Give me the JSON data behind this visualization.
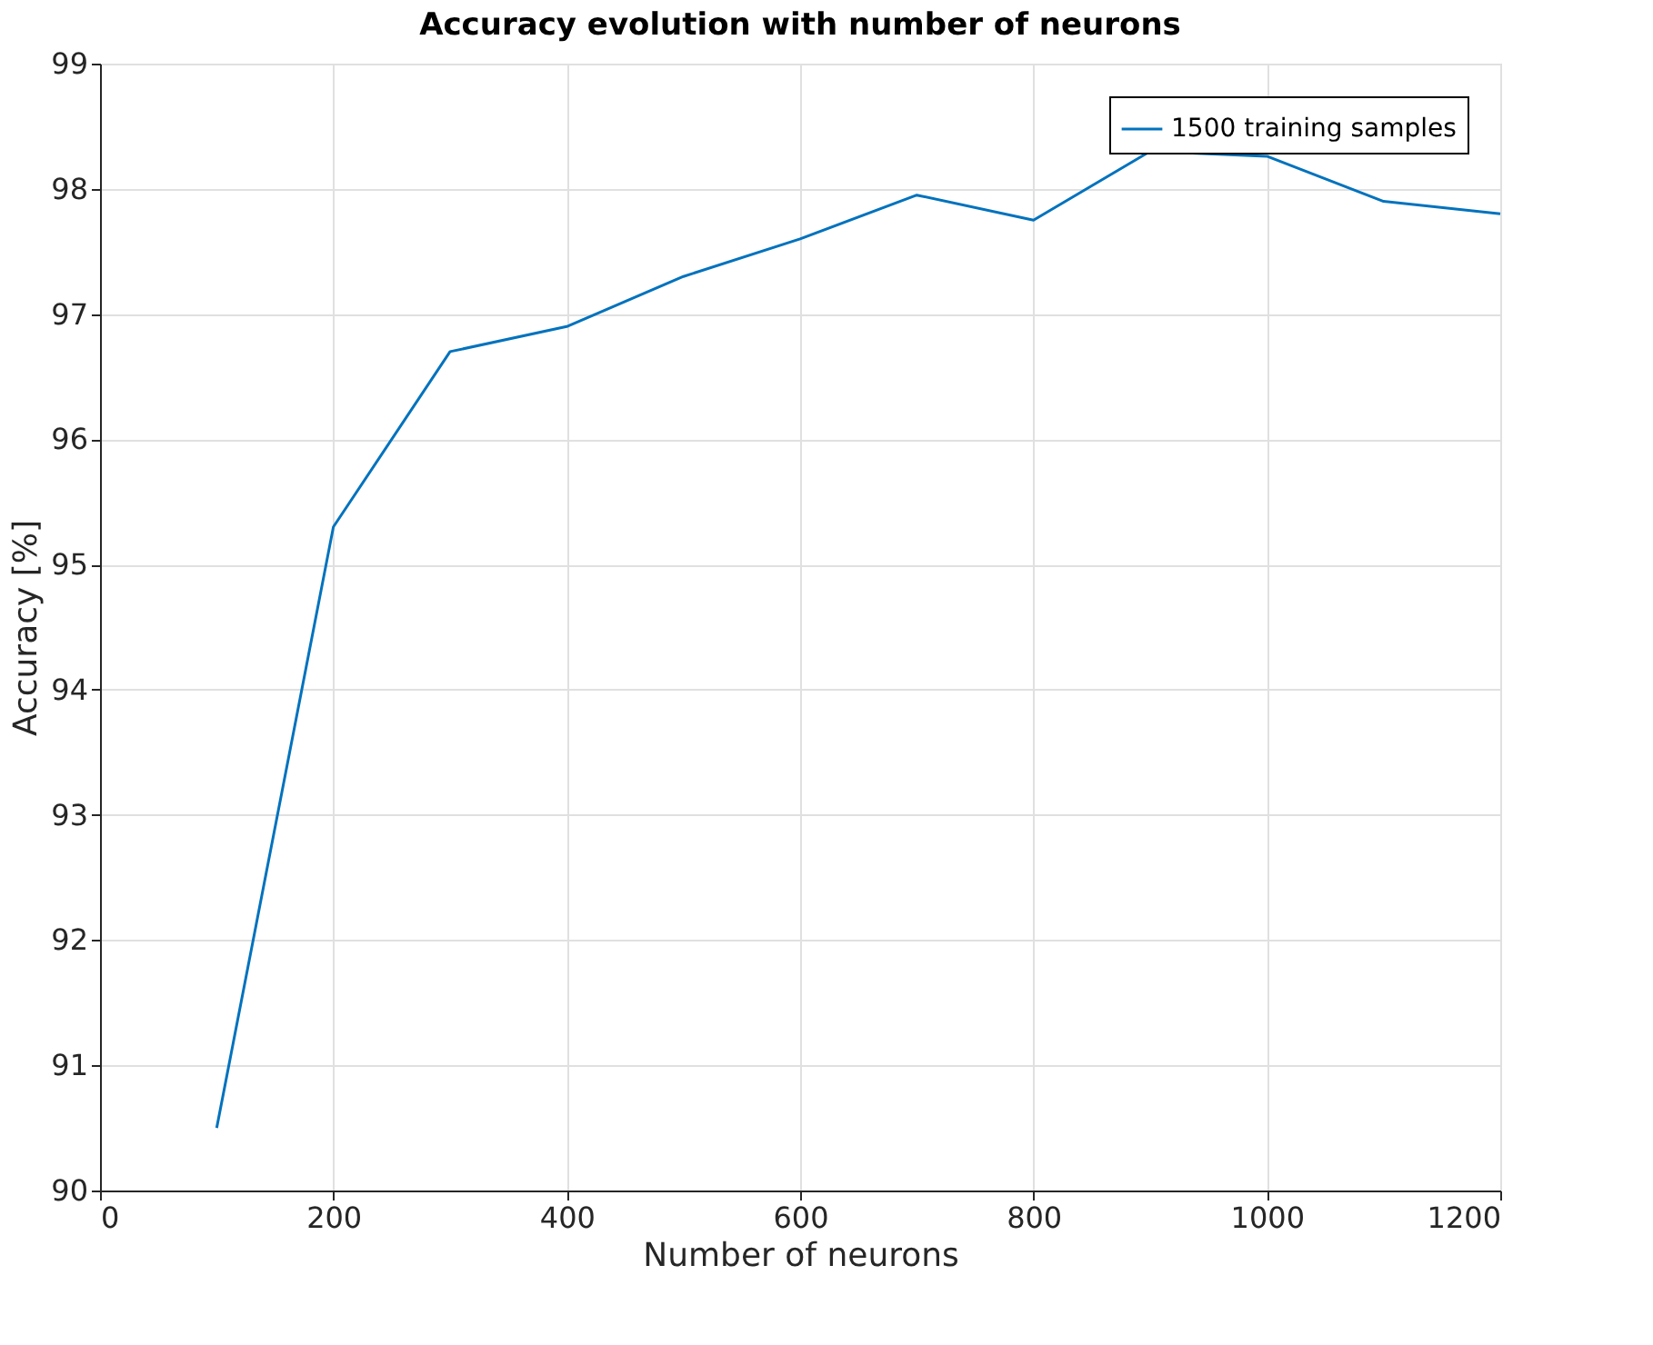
{
  "chart_data": {
    "type": "line",
    "title": "Accuracy evolution with number of neurons",
    "xlabel": "Number of neurons",
    "ylabel": "Accuracy [%]",
    "x": [
      100,
      200,
      300,
      400,
      500,
      600,
      700,
      800,
      900,
      1000,
      1100,
      1200
    ],
    "series": [
      {
        "name": "1500 training samples",
        "color": "#0072bd",
        "values": [
          90.5,
          95.3,
          96.7,
          96.9,
          97.3,
          97.6,
          97.95,
          97.75,
          98.3,
          98.26,
          97.9,
          97.8
        ]
      }
    ],
    "xlim": [
      0,
      1200
    ],
    "xticks": [
      0,
      200,
      400,
      600,
      800,
      1000,
      1200
    ],
    "ylim": [
      90,
      99
    ],
    "yticks": [
      90,
      91,
      92,
      93,
      94,
      95,
      96,
      97,
      98,
      99
    ],
    "grid": true,
    "legend": "top right",
    "marker": "none",
    "line_style": "solid"
  }
}
